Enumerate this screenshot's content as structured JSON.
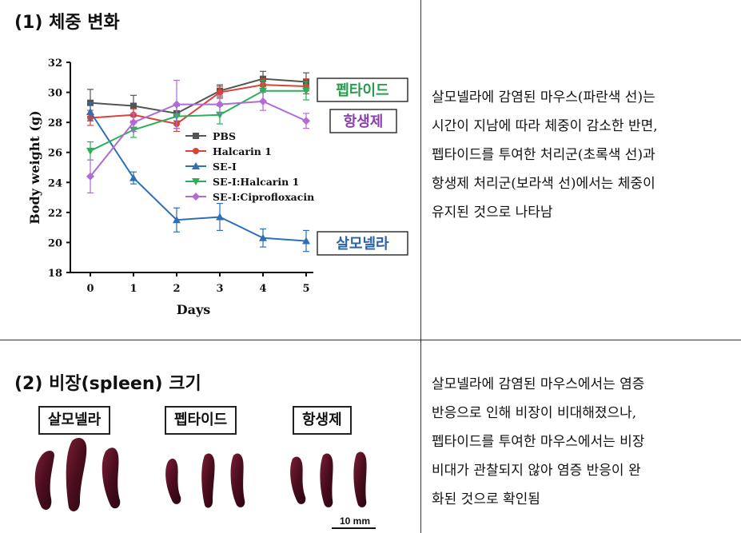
{
  "section1": {
    "title": "(1) 체중 변화"
  },
  "section2": {
    "title": "(2) 비장(spleen) 크기"
  },
  "description1": [
    "살모넬라에 감염된 마우스(파란색 선)는",
    "시간이 지남에 따라 체중이 감소한 반면,",
    "펩타이드를 투여한 처리군(초록색 선)과",
    "항생제 처리군(보라색 선)에서는 체중이",
    "유지된 것으로 나타남"
  ],
  "description2": [
    "살모넬라에 감염된 마우스에서는 염증",
    "반응으로 인해 비장이 비대해졌으나,",
    "펩타이드를 투여한 마우스에서는 비장",
    "비대가 관찰되지 않아 염증 반응이 완",
    "화된 것으로 확인됨"
  ],
  "chart_data": {
    "type": "line",
    "xlabel": "Days",
    "ylabel": "Body weight (g)",
    "x": [
      0,
      1,
      2,
      3,
      4,
      5
    ],
    "xlim": [
      0,
      5
    ],
    "ylim": [
      18,
      32
    ],
    "yticks": [
      18,
      20,
      22,
      24,
      26,
      28,
      30,
      32
    ],
    "legend_position": "center-right",
    "series": [
      {
        "name": "PBS",
        "color": "#555555",
        "marker": "square",
        "values": [
          29.3,
          29.1,
          28.6,
          30.1,
          30.9,
          30.7
        ],
        "errors": [
          0.9,
          0.7,
          0.5,
          0.4,
          0.5,
          0.6
        ]
      },
      {
        "name": "Halcarin 1",
        "color": "#d9433a",
        "marker": "circle",
        "values": [
          28.3,
          28.5,
          27.9,
          30.0,
          30.5,
          30.4
        ],
        "errors": [
          0.5,
          0.4,
          0.5,
          0.4,
          0.4,
          0.5
        ]
      },
      {
        "name": "SE-I",
        "color": "#2f6fb5",
        "marker": "triangle-up",
        "values": [
          28.7,
          24.3,
          21.5,
          21.7,
          20.3,
          20.1
        ],
        "errors": [
          0.6,
          0.4,
          0.8,
          0.9,
          0.6,
          0.7
        ]
      },
      {
        "name": "SE-I:Halcarin 1",
        "color": "#2fae5a",
        "marker": "triangle-down",
        "values": [
          26.1,
          27.5,
          28.4,
          28.5,
          30.1,
          30.1
        ],
        "errors": [
          0.6,
          0.5,
          0.8,
          0.6,
          0.7,
          0.6
        ]
      },
      {
        "name": "SE-I:Ciprofloxacin",
        "color": "#b26ad6",
        "marker": "diamond",
        "values": [
          24.4,
          28.0,
          29.2,
          29.2,
          29.4,
          28.1
        ],
        "errors": [
          1.1,
          0.6,
          1.6,
          0.6,
          0.6,
          0.5
        ]
      }
    ],
    "annotations": [
      {
        "text": "펩타이드",
        "color": "#2a9b4c",
        "y": 30.1
      },
      {
        "text": "항생제",
        "color": "#8c3fb0",
        "y": 28.2
      },
      {
        "text": "살모넬라",
        "color": "#2a62a8",
        "y": 20.1
      }
    ]
  },
  "spleen_panel": {
    "labels": [
      "살모넬라",
      "펩타이드",
      "항생제"
    ],
    "scale_text": "10 mm"
  }
}
